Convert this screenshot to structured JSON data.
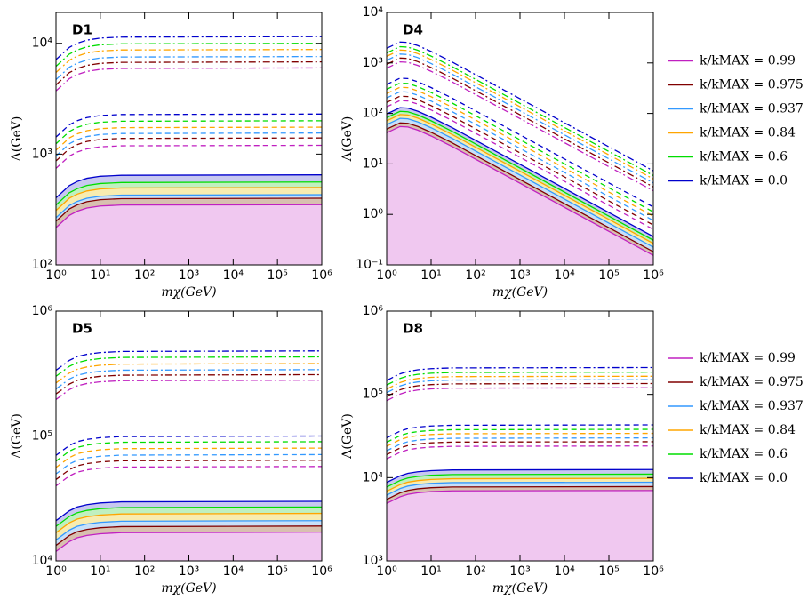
{
  "chart_data": [
    {
      "type": "line",
      "title": "D1",
      "xlabel": "mχ(GeV)",
      "ylabel": "Λ(GeV)",
      "log_x": true,
      "log_y": true,
      "x": [
        1,
        2,
        3,
        5,
        10,
        30,
        1000000
      ],
      "xlim": [
        1,
        1000000
      ],
      "xticks": [
        {
          "value": 1,
          "label": "10⁰"
        },
        {
          "value": 10,
          "label": "10¹"
        },
        {
          "value": 100,
          "label": "10²"
        },
        {
          "value": 1000,
          "label": "10³"
        },
        {
          "value": 10000,
          "label": "10⁴"
        },
        {
          "value": 100000,
          "label": "10⁵"
        },
        {
          "value": 1000000,
          "label": "10⁶"
        }
      ],
      "ylim": [
        100,
        19000
      ],
      "yticks": [
        {
          "value": 100,
          "label": "10²"
        },
        {
          "value": 1000,
          "label": "10³"
        },
        {
          "value": 10000,
          "label": "10⁴"
        }
      ],
      "series": [
        {
          "color": "#c020c0",
          "fill": "#f0c8f0",
          "values": [
            217,
            280,
            305,
            326,
            340,
            347,
            350
          ],
          "values_dashed": [
            744,
            960,
            1044,
            1116,
            1164,
            1188,
            1200
          ],
          "values_dashdot": [
            3720,
            4800,
            5220,
            5580,
            5820,
            5940,
            6000
          ]
        },
        {
          "color": "#800000",
          "fill": "#d8c0b0",
          "values": [
            248,
            320,
            348,
            372,
            388,
            396,
            400
          ],
          "values_dashed": [
            868,
            1120,
            1218,
            1302,
            1358,
            1386,
            1400
          ],
          "values_dashdot": [
            4216,
            5440,
            5916,
            6324,
            6596,
            6732,
            6800
          ]
        },
        {
          "color": "#3399ff",
          "fill": "#c8e0f8",
          "values": [
            267,
            344,
            374,
            400,
            417,
            426,
            430
          ],
          "values_dashed": [
            961,
            1240,
            1349,
            1442,
            1504,
            1535,
            1550
          ],
          "values_dashdot": [
            4712,
            6080,
            6612,
            7068,
            7372,
            7524,
            7600
          ]
        },
        {
          "color": "#ffa500",
          "fill": "#f8ecb0",
          "values": [
            310,
            400,
            435,
            465,
            485,
            495,
            500
          ],
          "values_dashed": [
            1085,
            1400,
            1523,
            1628,
            1698,
            1733,
            1750
          ],
          "values_dashdot": [
            5456,
            7040,
            7656,
            8184,
            8536,
            8712,
            8800
          ]
        },
        {
          "color": "#00dd00",
          "fill": "#c0f0c0",
          "values": [
            347,
            448,
            487,
            521,
            543,
            554,
            560
          ],
          "values_dashed": [
            1240,
            1600,
            1740,
            1860,
            1940,
            1980,
            2000
          ],
          "values_dashdot": [
            6200,
            8000,
            8700,
            9300,
            9700,
            9900,
            10000
          ]
        },
        {
          "color": "#0000cc",
          "fill": "#c8c8f0",
          "values": [
            403,
            520,
            566,
            605,
            631,
            644,
            650
          ],
          "values_dashed": [
            1426,
            1840,
            2001,
            2139,
            2231,
            2277,
            2300
          ],
          "values_dashdot": [
            7130,
            9200,
            10005,
            10695,
            11155,
            11385,
            11500
          ]
        }
      ]
    },
    {
      "type": "line",
      "title": "D4",
      "xlabel": "mχ(GeV)",
      "ylabel": "Λ(GeV)",
      "log_x": true,
      "log_y": true,
      "legend": "right",
      "x": [
        1,
        2,
        3,
        5,
        10,
        30,
        1000000
      ],
      "xlim": [
        1,
        1000000
      ],
      "xticks": [
        {
          "value": 1,
          "label": "10⁰"
        },
        {
          "value": 10,
          "label": "10¹"
        },
        {
          "value": 100,
          "label": "10²"
        },
        {
          "value": 1000,
          "label": "10³"
        },
        {
          "value": 10000,
          "label": "10⁴"
        },
        {
          "value": 100000,
          "label": "10⁵"
        },
        {
          "value": 1000000,
          "label": "10⁶"
        }
      ],
      "ylim": [
        0.1,
        10000
      ],
      "yticks": [
        {
          "value": 0.1,
          "label": "10⁻¹"
        },
        {
          "value": 1,
          "label": "10⁰"
        },
        {
          "value": 10,
          "label": "10¹"
        },
        {
          "value": 100,
          "label": "10²"
        },
        {
          "value": 1000,
          "label": "10³"
        },
        {
          "value": 10000,
          "label": "10⁴"
        }
      ],
      "series": [
        {
          "name": "k/kMAX = 0.99",
          "color": "#c020c0",
          "fill": "#f0c8f0",
          "values": [
            41.25,
            55,
            53.9,
            46.75,
            35.75,
            22,
            0.154
          ],
          "values_dashed": [
            135,
            180,
            176.4,
            153,
            117,
            72,
            0.504
          ],
          "values_dashdot": [
            787.5,
            1050,
            1029,
            892.5,
            682.5,
            420,
            2.94
          ]
        },
        {
          "name": "k/kMAX = 0.975",
          "color": "#800000",
          "fill": "#d8c0b0",
          "values": [
            48.75,
            65,
            63.7,
            55.25,
            42.25,
            26,
            0.182
          ],
          "values_dashed": [
            165,
            220,
            215.6,
            187,
            143,
            88,
            0.616
          ],
          "values_dashdot": [
            937.5,
            1250,
            1225,
            1062.5,
            812.5,
            500,
            3.5
          ]
        },
        {
          "name": "k/kMAX = 0.937",
          "color": "#3399ff",
          "fill": "#c8e0f8",
          "values": [
            60,
            80,
            78.4,
            68,
            52,
            32,
            0.224
          ],
          "values_dashed": [
            202.5,
            270,
            264.6,
            229.5,
            175.5,
            108,
            0.756
          ],
          "values_dashdot": [
            1125,
            1500,
            1470,
            1275,
            975,
            600,
            4.2
          ]
        },
        {
          "name": "k/kMAX = 0.84",
          "color": "#ffa500",
          "fill": "#f8ecb0",
          "values": [
            71.25,
            95,
            93.1,
            80.75,
            61.75,
            38,
            0.266
          ],
          "values_dashed": [
            247.5,
            330,
            323.4,
            280.5,
            214.5,
            132,
            0.924
          ],
          "values_dashdot": [
            1350,
            1800,
            1764,
            1530,
            1170,
            720,
            5.04
          ]
        },
        {
          "name": "k/kMAX = 0.6",
          "color": "#00dd00",
          "fill": "#c0f0c0",
          "values": [
            82.5,
            110,
            107.8,
            93.5,
            71.5,
            44,
            0.308
          ],
          "values_dashed": [
            300,
            400,
            392,
            340,
            260,
            160,
            1.12
          ],
          "values_dashdot": [
            1575,
            2100,
            2058,
            1785,
            1365,
            840,
            5.88
          ]
        },
        {
          "name": "k/kMAX = 0.0",
          "color": "#0000cc",
          "fill": "#c8c8f0",
          "values": [
            97.5,
            130,
            127.4,
            110.5,
            84.5,
            52,
            0.364
          ],
          "values_dashed": [
            375,
            500,
            490,
            425,
            325,
            200,
            1.4
          ],
          "values_dashdot": [
            1950,
            2600,
            2548,
            2210,
            1690,
            1040,
            7.28
          ]
        }
      ]
    },
    {
      "type": "line",
      "title": "D5",
      "xlabel": "mχ(GeV)",
      "ylabel": "Λ(GeV)",
      "log_x": true,
      "log_y": true,
      "x": [
        1,
        2,
        3,
        5,
        10,
        30,
        1000000
      ],
      "xlim": [
        1,
        1000000
      ],
      "xticks": [
        {
          "value": 1,
          "label": "10⁰"
        },
        {
          "value": 10,
          "label": "10¹"
        },
        {
          "value": 100,
          "label": "10²"
        },
        {
          "value": 1000,
          "label": "10³"
        },
        {
          "value": 10000,
          "label": "10⁴"
        },
        {
          "value": 100000,
          "label": "10⁵"
        },
        {
          "value": 1000000,
          "label": "10⁶"
        }
      ],
      "ylim": [
        10000,
        1000000
      ],
      "yticks": [
        {
          "value": 10000,
          "label": "10⁴"
        },
        {
          "value": 100000,
          "label": "10⁵"
        },
        {
          "value": 1000000,
          "label": "10⁶"
        }
      ],
      "series": [
        {
          "color": "#c020c0",
          "fill": "#f0c8f0",
          "values": [
            11900,
            14280,
            15300,
            15980,
            16490,
            16830,
            17000
          ],
          "values_dashed": [
            39900,
            47880,
            51300,
            53580,
            55290,
            56430,
            57000
          ],
          "values_dashdot": [
            196000,
            235200,
            252000,
            263200,
            271600,
            277200,
            280000
          ]
        },
        {
          "color": "#800000",
          "fill": "#d8c0b0",
          "values": [
            13300,
            15960,
            17100,
            17860,
            18430,
            18810,
            19000
          ],
          "values_dashed": [
            44800,
            53760,
            57600,
            60160,
            62080,
            63360,
            64000
          ],
          "values_dashdot": [
            217000,
            260400,
            279000,
            291400,
            300700,
            306900,
            310000
          ]
        },
        {
          "color": "#3399ff",
          "fill": "#c8e0f8",
          "values": [
            14700,
            17640,
            18900,
            19740,
            20370,
            20790,
            21000
          ],
          "values_dashed": [
            49700,
            59640,
            63900,
            66740,
            68870,
            70290,
            71000
          ],
          "values_dashdot": [
            238000,
            285600,
            306000,
            319600,
            329800,
            336600,
            340000
          ]
        },
        {
          "color": "#ffa500",
          "fill": "#f8ecb0",
          "values": [
            16800,
            20160,
            21600,
            22560,
            23280,
            23760,
            24000
          ],
          "values_dashed": [
            56000,
            67200,
            72000,
            75200,
            77600,
            79200,
            80000
          ],
          "values_dashdot": [
            266000,
            319200,
            342000,
            357200,
            368600,
            376200,
            380000
          ]
        },
        {
          "color": "#00dd00",
          "fill": "#c0f0c0",
          "values": [
            18900,
            22680,
            24300,
            25380,
            26190,
            26730,
            27000
          ],
          "values_dashed": [
            63000,
            75600,
            81000,
            84600,
            87300,
            89100,
            90000
          ],
          "values_dashdot": [
            301000,
            361200,
            387000,
            404200,
            417100,
            425700,
            430000
          ]
        },
        {
          "color": "#0000cc",
          "fill": "#c8c8f0",
          "values": [
            21000,
            25200,
            27000,
            28200,
            29100,
            29700,
            30000
          ],
          "values_dashed": [
            70000,
            84000,
            90000,
            94000,
            97000,
            99000,
            100000
          ],
          "values_dashdot": [
            336000,
            403200,
            432000,
            451200,
            465600,
            475200,
            480000
          ]
        }
      ]
    },
    {
      "type": "line",
      "title": "D8",
      "xlabel": "mχ(GeV)",
      "ylabel": "Λ(GeV)",
      "log_x": true,
      "log_y": true,
      "legend": "right",
      "x": [
        1,
        2,
        3,
        5,
        10,
        30,
        1000000
      ],
      "xlim": [
        1,
        1000000
      ],
      "xticks": [
        {
          "value": 1,
          "label": "10⁰"
        },
        {
          "value": 10,
          "label": "10¹"
        },
        {
          "value": 100,
          "label": "10²"
        },
        {
          "value": 1000,
          "label": "10³"
        },
        {
          "value": 10000,
          "label": "10⁴"
        },
        {
          "value": 100000,
          "label": "10⁵"
        },
        {
          "value": 1000000,
          "label": "10⁶"
        }
      ],
      "ylim": [
        1000,
        1000000
      ],
      "yticks": [
        {
          "value": 1000,
          "label": "10³"
        },
        {
          "value": 10000,
          "label": "10⁴"
        },
        {
          "value": 100000,
          "label": "10⁵"
        },
        {
          "value": 1000000,
          "label": "10⁶"
        }
      ],
      "series": [
        {
          "name": "k/kMAX = 0.99",
          "color": "#c020c0",
          "fill": "#f0c8f0",
          "values": [
            4900,
            5880,
            6300,
            6580,
            6790,
            6930,
            7000
          ],
          "values_dashed": [
            16800,
            20160,
            21600,
            22560,
            23280,
            23760,
            24000
          ],
          "values_dashdot": [
            84000,
            100800,
            108000,
            112800,
            116400,
            118800,
            120000
          ]
        },
        {
          "name": "k/kMAX = 0.975",
          "color": "#800000",
          "fill": "#d8c0b0",
          "values": [
            5460,
            6552,
            7020,
            7332,
            7566,
            7722,
            7800
          ],
          "values_dashed": [
            18900,
            22680,
            24300,
            25380,
            26190,
            26730,
            27000
          ],
          "values_dashdot": [
            94500,
            113400,
            121500,
            126900,
            130950,
            133650,
            135000
          ]
        },
        {
          "name": "k/kMAX = 0.937",
          "color": "#3399ff",
          "fill": "#c8e0f8",
          "values": [
            6160,
            7392,
            7920,
            8272,
            8536,
            8712,
            8800
          ],
          "values_dashed": [
            21000,
            25200,
            27000,
            28200,
            29100,
            29700,
            30000
          ],
          "values_dashdot": [
            105000,
            126000,
            135000,
            141000,
            145500,
            148500,
            150000
          ]
        },
        {
          "name": "k/kMAX = 0.84",
          "color": "#ffa500",
          "fill": "#f8ecb0",
          "values": [
            6860,
            8232,
            8820,
            9212,
            9506,
            9702,
            9800
          ],
          "values_dashed": [
            23800,
            28560,
            30600,
            31960,
            32980,
            33660,
            34000
          ],
          "values_dashdot": [
            115500,
            138600,
            148500,
            155100,
            160050,
            163350,
            165000
          ]
        },
        {
          "name": "k/kMAX = 0.6",
          "color": "#00dd00",
          "fill": "#c0f0c0",
          "values": [
            7700,
            9240,
            9900,
            10340,
            10670,
            10890,
            11000
          ],
          "values_dashed": [
            26600,
            31920,
            34200,
            35720,
            36860,
            37620,
            38000
          ],
          "values_dashdot": [
            129500,
            155400,
            166500,
            173900,
            179450,
            183150,
            185000
          ]
        },
        {
          "name": "k/kMAX = 0.0",
          "color": "#0000cc",
          "fill": "#c8c8f0",
          "values": [
            8750,
            10500,
            11250,
            11750,
            12125,
            12375,
            12500
          ],
          "values_dashed": [
            30100,
            36120,
            38700,
            40420,
            41710,
            42570,
            43000
          ],
          "values_dashdot": [
            147000,
            176400,
            189000,
            197400,
            203700,
            207900,
            210000
          ]
        }
      ]
    }
  ]
}
